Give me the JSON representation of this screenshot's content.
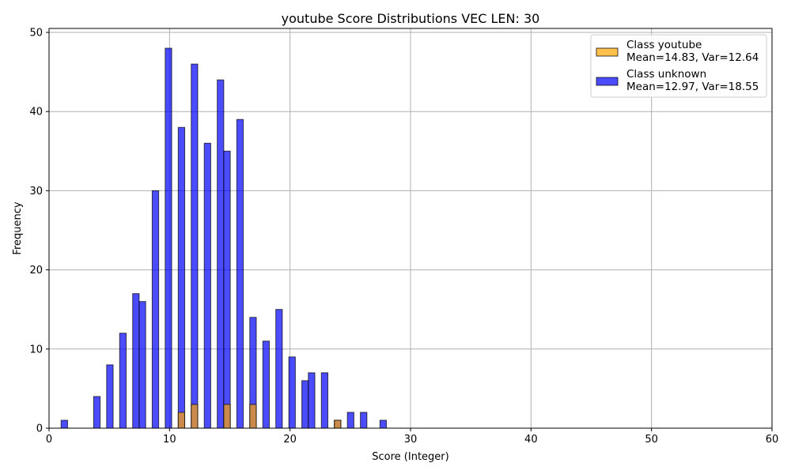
{
  "chart_data": {
    "type": "bar",
    "title": "youtube Score Distributions VEC LEN: 30",
    "xlabel": "Score (Integer)",
    "ylabel": "Frequency",
    "xlim": [
      0,
      60
    ],
    "ylim": [
      0,
      50.5
    ],
    "xticks": [
      0,
      10,
      20,
      30,
      40,
      50,
      60
    ],
    "yticks": [
      0,
      10,
      20,
      30,
      40,
      50
    ],
    "xtick_labels": [
      "0",
      "10",
      "20",
      "30",
      "40",
      "50",
      "60"
    ],
    "ytick_labels": [
      "0",
      "10",
      "20",
      "30",
      "40",
      "50"
    ],
    "grid": true,
    "legend_position": "top-right",
    "series": [
      {
        "name": "Class youtube",
        "legend_line2": "Mean=14.83, Var=12.64",
        "color": "#FFA500",
        "x": [
          11,
          12,
          15,
          17,
          24
        ],
        "values": [
          2,
          3,
          3,
          3,
          1
        ]
      },
      {
        "name": "Class unknown",
        "legend_line2": "Mean=12.97, Var=18.55",
        "color": "#0000FF",
        "x": [
          1,
          4,
          5,
          6,
          7,
          8,
          9,
          10,
          11,
          12,
          13,
          14,
          15,
          16,
          17,
          18,
          19,
          20,
          21,
          22,
          23,
          24,
          25,
          26,
          28
        ],
        "values": [
          1,
          4,
          8,
          12,
          17,
          16,
          30,
          48,
          38,
          46,
          36,
          44,
          35,
          39,
          14,
          11,
          15,
          9,
          6,
          7,
          7,
          1,
          2,
          2,
          1
        ]
      }
    ]
  }
}
